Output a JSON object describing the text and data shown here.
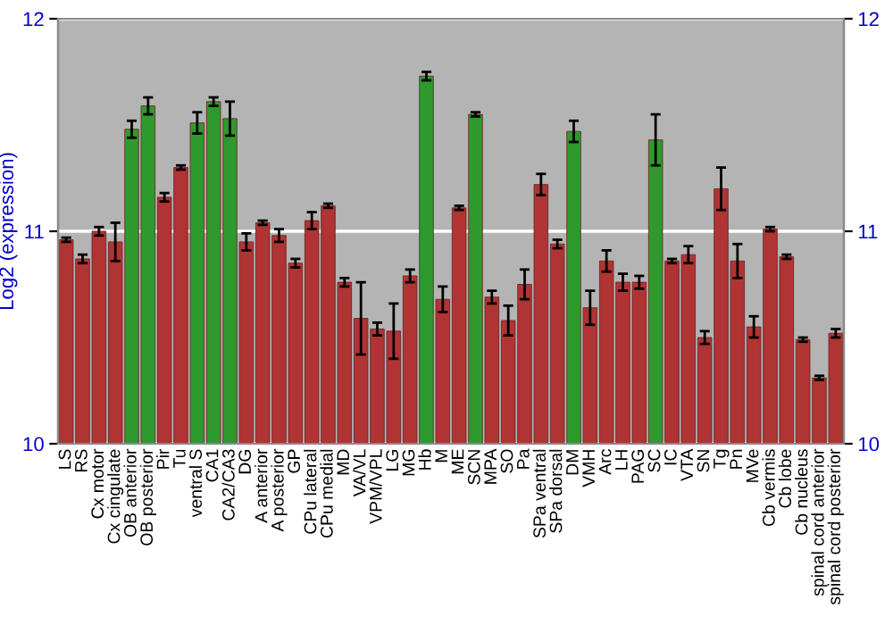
{
  "chart_data": {
    "type": "bar",
    "ylabel": "Log2 (expression)",
    "categories": [
      "LS",
      "RS",
      "Cx motor",
      "Cx cingulate",
      "OB anterior",
      "OB posterior",
      "Pir",
      "Tu",
      "ventral S",
      "CA1",
      "CA2/CA3",
      "DG",
      "A anterior",
      "A posterior",
      "GP",
      "CPu lateral",
      "CPu medial",
      "MD",
      "VA/VL",
      "VPM/VPL",
      "LG",
      "MG",
      "Hb",
      "M",
      "ME",
      "SCN",
      "MPA",
      "SO",
      "Pa",
      "SPa ventral",
      "SPa dorsal",
      "DM",
      "VMH",
      "Arc",
      "LH",
      "PAG",
      "SC",
      "IC",
      "VTA",
      "SN",
      "Tg",
      "Pn",
      "MVe",
      "Cb vermis",
      "Cb lobe",
      "Cb nucleus",
      "spinal cord anterior",
      "spinal cord posterior"
    ],
    "values": [
      10.96,
      10.87,
      11.0,
      10.95,
      11.48,
      11.59,
      11.16,
      11.3,
      11.51,
      11.61,
      11.53,
      10.95,
      11.04,
      10.98,
      10.85,
      11.05,
      11.12,
      10.76,
      10.59,
      10.54,
      10.53,
      10.79,
      11.73,
      10.68,
      11.11,
      11.55,
      10.69,
      10.58,
      10.75,
      11.22,
      10.94,
      11.47,
      10.64,
      10.86,
      10.76,
      10.76,
      11.43,
      10.86,
      10.89,
      10.5,
      11.2,
      10.86,
      10.55,
      11.01,
      10.88,
      10.49,
      10.31,
      10.52
    ],
    "errors": [
      0.01,
      0.02,
      0.02,
      0.09,
      0.04,
      0.04,
      0.02,
      0.01,
      0.05,
      0.02,
      0.08,
      0.04,
      0.01,
      0.03,
      0.02,
      0.04,
      0.01,
      0.02,
      0.17,
      0.03,
      0.13,
      0.03,
      0.02,
      0.06,
      0.01,
      0.01,
      0.03,
      0.07,
      0.07,
      0.05,
      0.02,
      0.05,
      0.08,
      0.05,
      0.04,
      0.03,
      0.12,
      0.01,
      0.04,
      0.03,
      0.1,
      0.08,
      0.05,
      0.01,
      0.01,
      0.01,
      0.01,
      0.02
    ],
    "colors": [
      "#b03434",
      "#b03434",
      "#b03434",
      "#b03434",
      "#2e9a2e",
      "#2e9a2e",
      "#b03434",
      "#b03434",
      "#2e9a2e",
      "#2e9a2e",
      "#2e9a2e",
      "#b03434",
      "#b03434",
      "#b03434",
      "#b03434",
      "#b03434",
      "#b03434",
      "#b03434",
      "#b03434",
      "#b03434",
      "#b03434",
      "#b03434",
      "#2e9a2e",
      "#b03434",
      "#b03434",
      "#2e9a2e",
      "#b03434",
      "#b03434",
      "#b03434",
      "#b03434",
      "#b03434",
      "#2e9a2e",
      "#b03434",
      "#b03434",
      "#b03434",
      "#b03434",
      "#2e9a2e",
      "#b03434",
      "#b03434",
      "#b03434",
      "#b03434",
      "#b03434",
      "#b03434",
      "#b03434",
      "#b03434",
      "#b03434",
      "#b03434",
      "#b03434"
    ],
    "ylim": [
      10,
      12
    ],
    "yticks": [
      10,
      11,
      12
    ],
    "y2lim": [
      10,
      12
    ],
    "y2ticks": [
      10,
      11,
      12
    ],
    "grid": "y"
  }
}
